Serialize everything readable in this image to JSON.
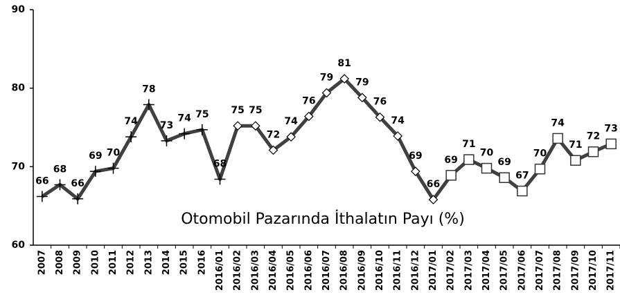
{
  "chart_data": {
    "type": "line",
    "annotation": "Otomobil Pazarında İthalatın Payı (%)",
    "categories": [
      "2007",
      "2008",
      "2009",
      "2010",
      "2011",
      "2012",
      "2013",
      "2014",
      "2015",
      "2016",
      "2016/01",
      "2016/02",
      "2016/03",
      "2016/04",
      "2016/05",
      "2016/06",
      "2016/07",
      "2016/08",
      "2016/09",
      "2016/10",
      "2016/11",
      "2016/12",
      "2017/01",
      "2017/02",
      "2017/03",
      "2017/04",
      "2017/05",
      "2017/06",
      "2017/07",
      "2017/08",
      "2017/09",
      "2017/10",
      "2017/11"
    ],
    "values": [
      66.2,
      67.7,
      65.9,
      69.4,
      69.8,
      73.8,
      77.9,
      73.3,
      74.2,
      74.7,
      68.4,
      75.2,
      75.2,
      72.1,
      73.8,
      76.4,
      79.4,
      81.2,
      78.8,
      76.3,
      73.9,
      69.4,
      65.8,
      68.9,
      70.9,
      69.8,
      68.6,
      66.9,
      69.7,
      73.6,
      70.8,
      71.9,
      72.9
    ],
    "value_labels": [
      "66",
      "68",
      "66",
      "69",
      "70",
      "74",
      "78",
      "73",
      "74",
      "75",
      "68",
      "75",
      "75",
      "72",
      "74",
      "76",
      "79",
      "81",
      "79",
      "76",
      "74",
      "69",
      "66",
      "69",
      "71",
      "70",
      "69",
      "67",
      "70",
      "74",
      "71",
      "72",
      "73"
    ],
    "markers": [
      "plus",
      "plus",
      "plus",
      "plus",
      "plus",
      "plus",
      "plus",
      "plus",
      "plus",
      "plus",
      "plus",
      "diamond",
      "diamond",
      "diamond",
      "diamond",
      "diamond",
      "diamond",
      "diamond",
      "diamond",
      "diamond",
      "diamond",
      "diamond",
      "diamond",
      "square",
      "square",
      "square",
      "square",
      "square",
      "square",
      "square",
      "square",
      "square",
      "square"
    ],
    "color": "#404040",
    "ylim": [
      60,
      90
    ],
    "yticks": [
      60,
      70,
      80,
      90
    ],
    "grid": false
  }
}
